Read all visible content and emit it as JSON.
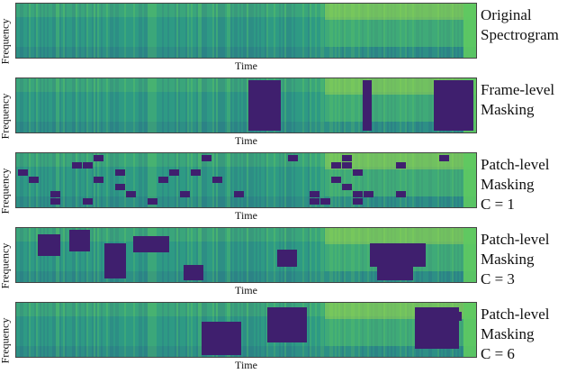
{
  "axis_labels": {
    "y": "Frequency",
    "x": "Time"
  },
  "panels": [
    {
      "id": "original",
      "caption_lines": [
        "Original",
        "Spectrogram"
      ]
    },
    {
      "id": "frame",
      "caption_lines": [
        "Frame-level",
        "Masking"
      ]
    },
    {
      "id": "patch1",
      "caption_lines": [
        "Patch-level",
        "Masking",
        "C = 1"
      ]
    },
    {
      "id": "patch3",
      "caption_lines": [
        "Patch-level",
        "Masking",
        "C = 3"
      ]
    },
    {
      "id": "patch6",
      "caption_lines": [
        "Patch-level",
        "Masking",
        "C = 6"
      ]
    }
  ],
  "colors": {
    "mask": "#3f1f6e",
    "spec_low": "#2a6f8a",
    "spec_mid": "#2e9a84",
    "spec_high": "#5ec962",
    "bright": "#9fd94a"
  }
}
